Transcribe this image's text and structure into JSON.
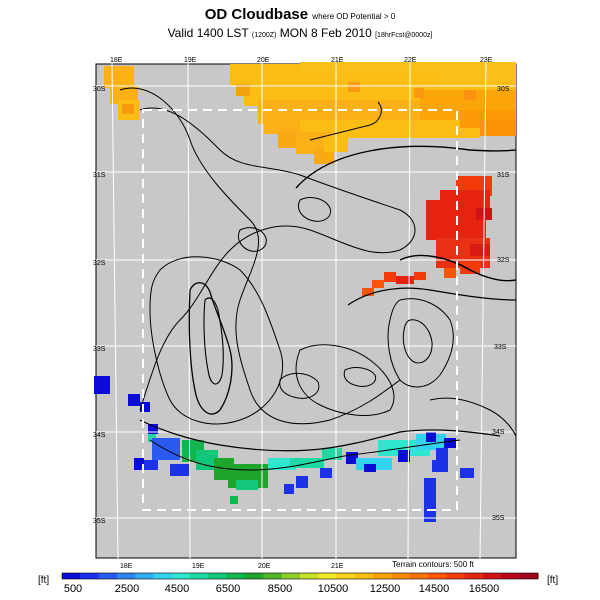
{
  "title": {
    "main": "OD Cloudbase",
    "main_suffix": "where OD Potential > 0",
    "valid": "Valid 1400 LST",
    "valid_code": "(1200Z)",
    "date": "MON 8 Feb 2010",
    "run": "[18hrFcst@0000z]"
  },
  "map": {
    "lon_labels_top": [
      "18E",
      "19E",
      "20E",
      "21E",
      "22E",
      "23E"
    ],
    "lon_labels_bottom": [
      "18E",
      "19E",
      "20E",
      "21E"
    ],
    "lat_labels_left": [
      "30S",
      "31S",
      "32S",
      "33S",
      "34S",
      "35S"
    ],
    "lat_labels_right": [
      "30S",
      "31S",
      "32S",
      "33S",
      "34S",
      "35S"
    ],
    "terrain_note": "Terrain contours: 500 ft",
    "land_color": "#c8c8c8",
    "grid_color": "#ffffff"
  },
  "colorbar": {
    "unit_left": "[ft]",
    "unit_right": "[ft]",
    "tick_labels": [
      "500",
      "2500",
      "4500",
      "6500",
      "8500",
      "10500",
      "12500",
      "14500",
      "16500"
    ],
    "colors": [
      "#0b0bd6",
      "#1d32e8",
      "#2a5af0",
      "#2f85f5",
      "#33aef5",
      "#33d3ee",
      "#2fe6cf",
      "#1fd9a4",
      "#13c77a",
      "#12b54e",
      "#1ea52b",
      "#4fb82a",
      "#8ccd2a",
      "#c7e02a",
      "#f0ea25",
      "#f9d41e",
      "#fbbd14",
      "#fca50b",
      "#fc8c05",
      "#fb7204",
      "#f85506",
      "#f23a0b",
      "#e62211",
      "#d01214",
      "#b80818",
      "#a0051c"
    ]
  }
}
